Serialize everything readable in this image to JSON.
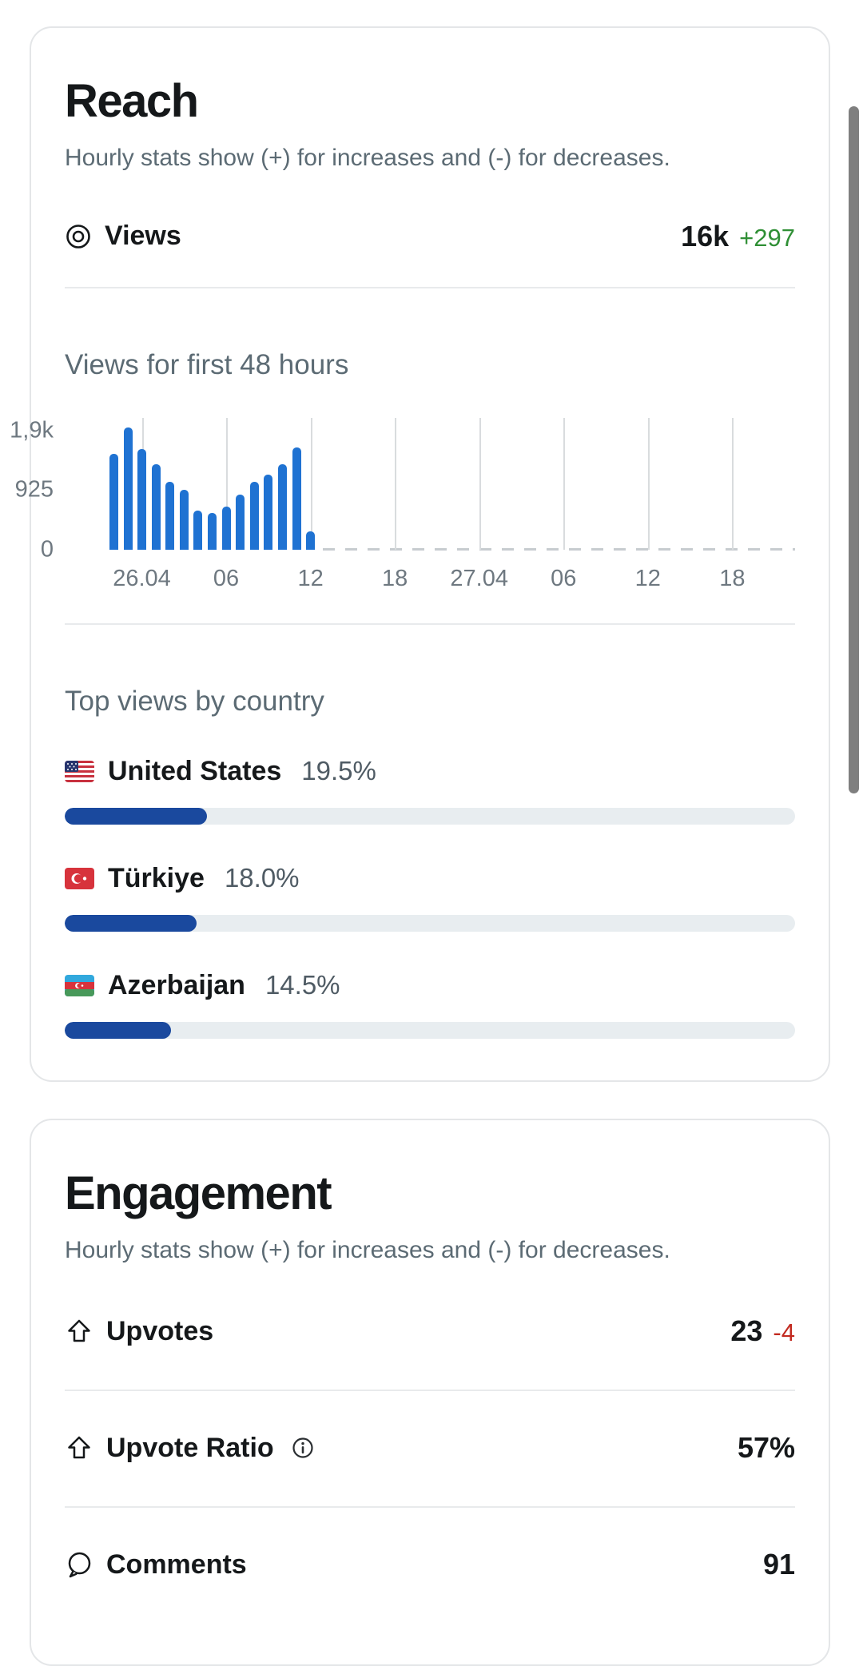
{
  "reach": {
    "title": "Reach",
    "subtitle": "Hourly stats show (+) for increases and (-) for decreases.",
    "views_row": {
      "icon": "views-icon",
      "label": "Views",
      "value": "16k",
      "delta": "+297",
      "delta_color": "#2f8f35"
    },
    "chart_title": "Views for first 48 hours",
    "countries_title": "Top views by country",
    "countries": [
      {
        "flag": "us-flag-icon",
        "name": "United States",
        "percent": "19.5%",
        "value": 19.5
      },
      {
        "flag": "tr-flag-icon",
        "name": "Türkiye",
        "percent": "18.0%",
        "value": 18.0
      },
      {
        "flag": "az-flag-icon",
        "name": "Azerbaijan",
        "percent": "14.5%",
        "value": 14.5
      }
    ],
    "bar_fill_color": "#1a499e"
  },
  "engagement": {
    "title": "Engagement",
    "subtitle": "Hourly stats show (+) for increases and (-) for decreases.",
    "rows": [
      {
        "icon": "upvote-icon",
        "label": "Upvotes",
        "value": "23",
        "delta": "-4",
        "delta_color": "#c22a20"
      },
      {
        "icon": "upvote-icon",
        "label": "Upvote Ratio",
        "has_info_icon": true,
        "value": "57%"
      },
      {
        "icon": "comment-icon",
        "label": "Comments",
        "value": "91"
      }
    ]
  },
  "chart_data": {
    "type": "bar",
    "title": "Views for first 48 hours",
    "x": [
      "25.04 22:00",
      "25.04 23:00",
      "26.04 00:00",
      "26.04 01:00",
      "26.04 02:00",
      "26.04 03:00",
      "26.04 04:00",
      "26.04 05:00",
      "26.04 06:00",
      "26.04 07:00",
      "26.04 08:00",
      "26.04 09:00",
      "26.04 10:00",
      "26.04 11:00",
      "26.04 12:00"
    ],
    "values": [
      1480,
      1900,
      1560,
      1320,
      1050,
      925,
      600,
      560,
      660,
      850,
      1050,
      1160,
      1320,
      1580,
      275
    ],
    "x_ticks": [
      "26.04",
      "06",
      "12",
      "18",
      "27.04",
      "06",
      "12",
      "18"
    ],
    "y_ticks": [
      "1,9k",
      "925",
      "0"
    ],
    "ylim": [
      0,
      2050
    ],
    "xlabel": "",
    "ylabel": "",
    "bar_color": "#1f72d2",
    "gridlines": true,
    "legend": false
  }
}
